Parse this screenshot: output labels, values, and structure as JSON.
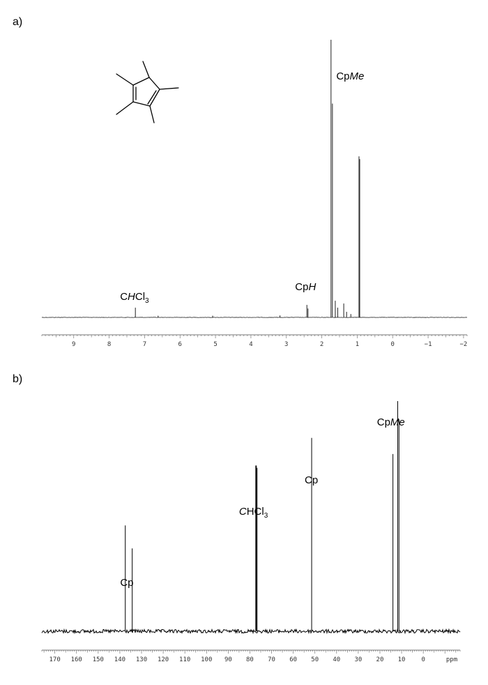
{
  "chart_data": [
    {
      "type": "line",
      "panel_label": "a)",
      "xlabel": "",
      "x_reversed": true,
      "xlim": [
        9.9,
        -2.1
      ],
      "tick_values": [
        9,
        8,
        7,
        6,
        5,
        4,
        3,
        2,
        1,
        0,
        -1,
        -2
      ],
      "tick_labels": [
        "9",
        "8",
        "7",
        "6",
        "5",
        "4",
        "3",
        "2",
        "1",
        "0",
        "−1",
        "−2"
      ],
      "peaks": [
        {
          "x": 7.26,
          "height": 0.035
        },
        {
          "x": 6.62,
          "height": 0.006
        },
        {
          "x": 5.08,
          "height": 0.006
        },
        {
          "x": 3.18,
          "height": 0.007
        },
        {
          "x": 2.42,
          "height": 0.045
        },
        {
          "x": 2.39,
          "height": 0.032
        },
        {
          "x": 1.74,
          "height": 1.0
        },
        {
          "x": 1.7,
          "height": 0.77
        },
        {
          "x": 1.62,
          "height": 0.06
        },
        {
          "x": 1.55,
          "height": 0.035
        },
        {
          "x": 1.38,
          "height": 0.05
        },
        {
          "x": 1.3,
          "height": 0.02
        },
        {
          "x": 1.18,
          "height": 0.012
        },
        {
          "x": 0.95,
          "height": 0.58
        },
        {
          "x": 0.93,
          "height": 0.57
        }
      ],
      "annotations": [
        {
          "text": "C",
          "italic": "H",
          "rest": "Cl",
          "sub": "3",
          "x": 7.26
        },
        {
          "text": "Cp",
          "italic": "H",
          "rest": "",
          "sub": "",
          "x": 2.4
        },
        {
          "text": "Cp",
          "italic": "Me",
          "rest": "",
          "sub": "",
          "x": 1.1
        }
      ]
    },
    {
      "type": "line",
      "panel_label": "b)",
      "xlabel": "ppm",
      "x_reversed": true,
      "xlim": [
        176,
        -17
      ],
      "tick_values": [
        170,
        160,
        150,
        140,
        130,
        120,
        110,
        100,
        90,
        80,
        70,
        60,
        50,
        40,
        30,
        20,
        10,
        0
      ],
      "tick_labels": [
        "170",
        "160",
        "150",
        "140",
        "130",
        "120",
        "110",
        "100",
        "90",
        "80",
        "70",
        "60",
        "50",
        "40",
        "30",
        "20",
        "10",
        "0"
      ],
      "peaks": [
        {
          "x": 137.5,
          "height": 0.46
        },
        {
          "x": 134.3,
          "height": 0.36
        },
        {
          "x": 77.3,
          "height": 0.72
        },
        {
          "x": 77.0,
          "height": 0.72
        },
        {
          "x": 76.7,
          "height": 0.71
        },
        {
          "x": 51.5,
          "height": 0.84
        },
        {
          "x": 14.0,
          "height": 0.77
        },
        {
          "x": 11.8,
          "height": 1.0
        },
        {
          "x": 11.2,
          "height": 0.92
        }
      ],
      "annotations": [
        {
          "text": "Cp",
          "italic": "",
          "rest": "",
          "sub": "",
          "x": 136
        },
        {
          "text": "",
          "italic": "C",
          "rest": "HCl",
          "sub": "3",
          "x": 76
        },
        {
          "text": "Cp",
          "italic": "",
          "rest": "",
          "sub": "",
          "x": 51.5
        },
        {
          "text": "Cp",
          "italic": "Me",
          "rest": "",
          "sub": "",
          "x": 13
        }
      ]
    }
  ]
}
